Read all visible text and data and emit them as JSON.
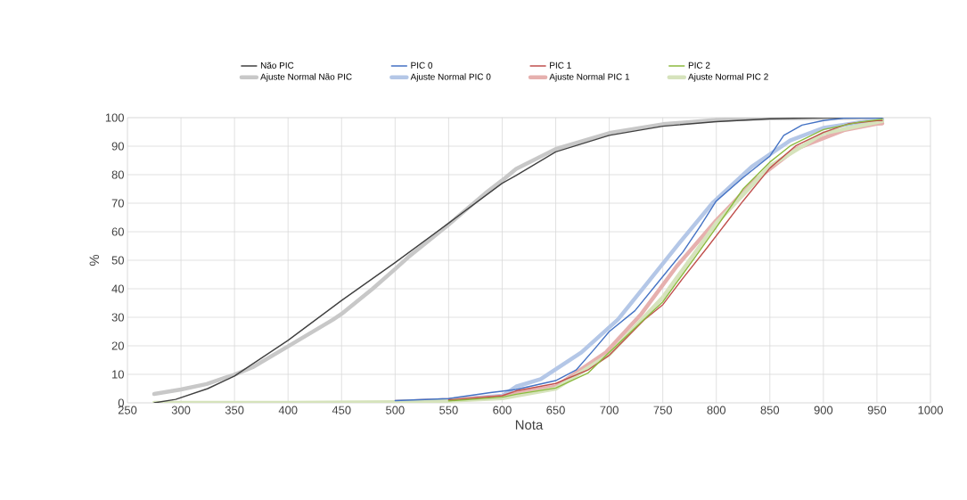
{
  "chart_data": {
    "type": "line",
    "xlabel": "Nota",
    "ylabel": "%",
    "xlim": [
      250,
      1000
    ],
    "ylim": [
      0,
      100
    ],
    "xticks": [
      250,
      300,
      350,
      400,
      450,
      500,
      550,
      600,
      650,
      700,
      750,
      800,
      850,
      900,
      950,
      1000
    ],
    "yticks": [
      0,
      10,
      20,
      30,
      40,
      50,
      60,
      70,
      80,
      90,
      100
    ],
    "grid": true,
    "legend": "top",
    "series": [
      {
        "name": "Não PIC",
        "color": "#404040",
        "x": [
          275,
          295,
          325,
          350,
          400,
          450,
          500,
          550,
          600,
          613,
          650,
          700,
          750,
          800,
          850,
          900,
          955
        ],
        "values": [
          0,
          1.2,
          5,
          9.4,
          21.9,
          35.9,
          49.2,
          63,
          77,
          79.7,
          88,
          93.8,
          97,
          98.6,
          99.6,
          100,
          100
        ]
      },
      {
        "name": "PIC 0",
        "color": "#4472c4",
        "x": [
          500,
          550,
          589,
          613,
          650,
          669,
          686,
          700,
          724,
          750,
          769,
          786,
          800,
          825,
          850,
          863,
          880,
          900,
          919,
          955
        ],
        "values": [
          0.8,
          1.5,
          3.6,
          4.7,
          7.8,
          11.5,
          18.8,
          25,
          32.3,
          44.3,
          53,
          62.5,
          70.8,
          79,
          86.5,
          93.8,
          97.4,
          99,
          99.8,
          100
        ]
      },
      {
        "name": "PIC 1",
        "color": "#c0504d",
        "x": [
          550,
          600,
          613,
          650,
          680,
          700,
          733,
          750,
          769,
          791,
          808,
          825,
          850,
          874,
          900,
          924,
          950,
          955
        ],
        "values": [
          1,
          2.5,
          4.2,
          6.8,
          11.5,
          16.7,
          29.2,
          34.4,
          43.8,
          54.2,
          62.5,
          70.8,
          82.3,
          90.1,
          94.8,
          97.9,
          99,
          99
        ]
      },
      {
        "name": "PIC 2",
        "color": "#8cba3f",
        "x": [
          550,
          600,
          613,
          650,
          680,
          700,
          750,
          763,
          780,
          800,
          825,
          850,
          869,
          900,
          933,
          955
        ],
        "values": [
          0.7,
          2,
          3,
          5.2,
          10.4,
          17.7,
          35.4,
          42.2,
          51,
          61.5,
          75,
          84.4,
          90.1,
          95.8,
          98.4,
          99.5
        ]
      },
      {
        "name": "Ajuste Normal Não PIC",
        "color": "#c8c8c8",
        "x": [
          275,
          300,
          324,
          350,
          367,
          400,
          442,
          450,
          479,
          500,
          512,
          550,
          584,
          600,
          613,
          650,
          700,
          750,
          800,
          850,
          955
        ],
        "values": [
          3.1,
          4.7,
          6.6,
          9.9,
          12.5,
          19.8,
          29.2,
          31.2,
          40,
          46.9,
          51,
          62.5,
          73.4,
          78,
          82,
          89,
          94.6,
          97.7,
          99.2,
          99.8,
          100
        ]
      },
      {
        "name": "Ajuste Normal PIC 0",
        "color": "#b4c7e7",
        "x": [
          500,
          550,
          600,
          613,
          636,
          674,
          708,
          736,
          766,
          797,
          833,
          869,
          900,
          950,
          955
        ],
        "values": [
          0.3,
          1,
          2.5,
          5.7,
          8.3,
          17.7,
          29.2,
          42.2,
          56.3,
          70.3,
          82.8,
          92,
          96.4,
          99.2,
          99.3
        ]
      },
      {
        "name": "Ajuste Normal PIC 1",
        "color": "#e6b0ae",
        "x": [
          500,
          550,
          600,
          613,
          650,
          697,
          730,
          763,
          800,
          836,
          874,
          919,
          950,
          955
        ],
        "values": [
          0.3,
          1,
          2.2,
          3.5,
          5.7,
          17.7,
          31.2,
          47.9,
          64,
          78,
          89,
          95.6,
          97.9,
          98
        ]
      },
      {
        "name": "Ajuste Normal PIC 2",
        "color": "#d6e3bc",
        "x": [
          275,
          400,
          500,
          550,
          600,
          613,
          650,
          700,
          750,
          800,
          850,
          900,
          955
        ],
        "values": [
          0,
          0,
          0.2,
          0.7,
          1.6,
          2.5,
          5,
          17,
          37,
          63,
          83,
          94.5,
          98.8
        ]
      }
    ]
  }
}
